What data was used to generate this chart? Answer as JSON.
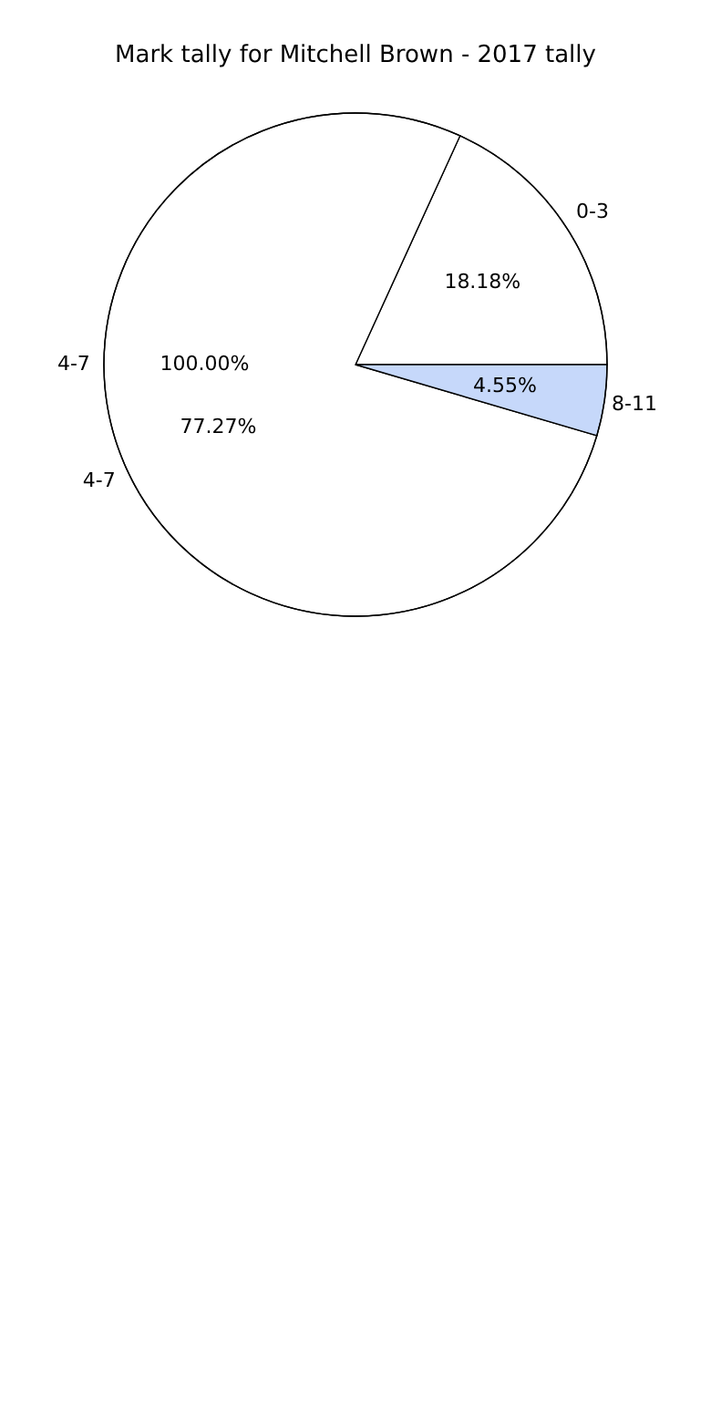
{
  "chart_data": [
    {
      "type": "pie",
      "title": "Mark tally for Mitchell Brown - 2017 tally",
      "categories": [
        "0-3",
        "4-7",
        "8-11"
      ],
      "values": [
        18.18,
        77.27,
        4.55
      ],
      "value_labels": [
        "18.18%",
        "77.27%",
        "4.55%"
      ],
      "colors": [
        "#ffffff",
        "#ffffff",
        "#c6d8fa"
      ]
    },
    {
      "type": "pie",
      "categories": [
        "4-7"
      ],
      "values": [
        100
      ],
      "value_labels": [
        "100.00%"
      ],
      "colors": [
        "#ffffff"
      ]
    }
  ]
}
